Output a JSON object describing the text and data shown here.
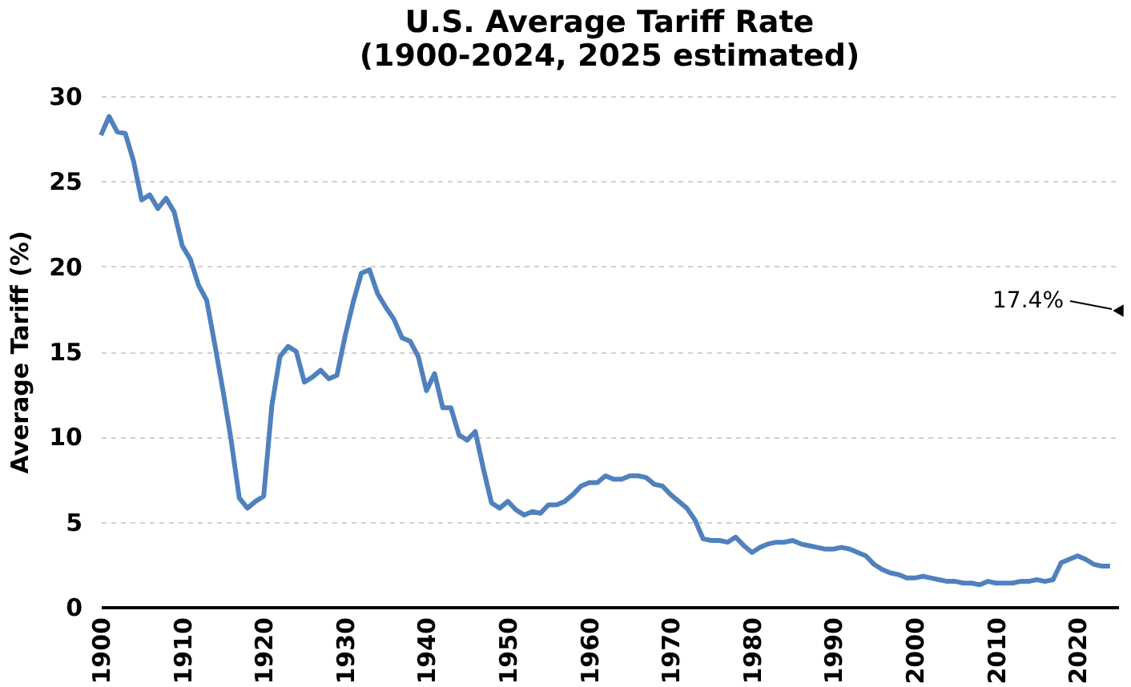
{
  "chart_data": {
    "type": "line",
    "title": [
      "U.S. Average Tariff Rate",
      "(1900-2024, 2025 estimated)"
    ],
    "ylabel": "Average Tariff (%)",
    "xlim": [
      1900,
      2025
    ],
    "xticks": [
      1900,
      1910,
      1920,
      1930,
      1940,
      1950,
      1960,
      1970,
      1980,
      1990,
      2000,
      2010,
      2020
    ],
    "ylim": [
      0,
      30
    ],
    "yticks": [
      0,
      5,
      10,
      15,
      20,
      25,
      30
    ],
    "grid": "y",
    "legend": false,
    "series": [
      {
        "color": "#4f81bd",
        "x": [
          1900,
          1901,
          1902,
          1903,
          1904,
          1905,
          1906,
          1907,
          1908,
          1909,
          1910,
          1911,
          1912,
          1913,
          1914,
          1915,
          1916,
          1917,
          1918,
          1919,
          1920,
          1921,
          1922,
          1923,
          1924,
          1925,
          1926,
          1927,
          1928,
          1929,
          1930,
          1931,
          1932,
          1933,
          1934,
          1935,
          1936,
          1937,
          1938,
          1939,
          1940,
          1941,
          1942,
          1943,
          1944,
          1945,
          1946,
          1947,
          1948,
          1949,
          1950,
          1951,
          1952,
          1953,
          1954,
          1955,
          1956,
          1957,
          1958,
          1959,
          1960,
          1961,
          1962,
          1963,
          1964,
          1965,
          1966,
          1967,
          1968,
          1969,
          1970,
          1971,
          1972,
          1973,
          1974,
          1975,
          1976,
          1977,
          1978,
          1979,
          1980,
          1981,
          1982,
          1983,
          1984,
          1985,
          1986,
          1987,
          1988,
          1989,
          1990,
          1991,
          1992,
          1993,
          1994,
          1995,
          1996,
          1997,
          1998,
          1999,
          2000,
          2001,
          2002,
          2003,
          2004,
          2005,
          2006,
          2007,
          2008,
          2009,
          2010,
          2011,
          2012,
          2013,
          2014,
          2015,
          2016,
          2017,
          2018,
          2019,
          2020,
          2021,
          2022,
          2023,
          2024
        ],
        "values": [
          27.7,
          28.8,
          27.9,
          27.8,
          26.2,
          23.9,
          24.2,
          23.4,
          24.0,
          23.2,
          21.2,
          20.4,
          18.9,
          18.0,
          15.4,
          12.7,
          9.8,
          6.4,
          5.8,
          6.2,
          6.5,
          11.8,
          14.7,
          15.3,
          15.0,
          13.2,
          13.5,
          13.9,
          13.4,
          13.6,
          15.9,
          17.9,
          19.6,
          19.8,
          18.4,
          17.6,
          16.9,
          15.8,
          15.6,
          14.7,
          12.7,
          13.7,
          11.7,
          11.7,
          10.1,
          9.8,
          10.3,
          8.1,
          6.1,
          5.8,
          6.2,
          5.7,
          5.4,
          5.6,
          5.5,
          6.0,
          6.0,
          6.2,
          6.6,
          7.1,
          7.3,
          7.3,
          7.7,
          7.5,
          7.5,
          7.7,
          7.7,
          7.6,
          7.2,
          7.1,
          6.6,
          6.2,
          5.8,
          5.1,
          4.0,
          3.9,
          3.9,
          3.8,
          4.1,
          3.6,
          3.2,
          3.5,
          3.7,
          3.8,
          3.8,
          3.9,
          3.7,
          3.6,
          3.5,
          3.4,
          3.4,
          3.5,
          3.4,
          3.2,
          3.0,
          2.5,
          2.2,
          2.0,
          1.9,
          1.7,
          1.7,
          1.8,
          1.7,
          1.6,
          1.5,
          1.5,
          1.4,
          1.4,
          1.3,
          1.5,
          1.4,
          1.4,
          1.4,
          1.5,
          1.5,
          1.6,
          1.5,
          1.6,
          2.6,
          2.8,
          3.0,
          2.8,
          2.5,
          2.4,
          2.4
        ]
      },
      {
        "type": "scatter",
        "color": "#000000",
        "marker": "triangle",
        "x": [
          2025
        ],
        "values": [
          17.4
        ]
      }
    ],
    "annotations": [
      {
        "text": "17.4%",
        "x": 2025,
        "y": 17.4
      }
    ]
  }
}
